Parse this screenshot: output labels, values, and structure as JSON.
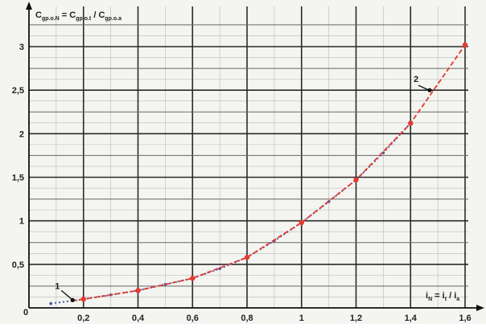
{
  "chart_data": {
    "type": "line",
    "ylabel": {
      "C1": "C",
      "sub1": "gp.o.N",
      "eq": " = C",
      "sub2": "gp.o.t",
      "slash": " / C",
      "sub3": "gp.o.a"
    },
    "xlabel": {
      "i": "i",
      "sub1": "N",
      "eq": " = i",
      "sub2": "t",
      "slash": " / i",
      "sub3": "a"
    },
    "origin_label": "0",
    "x_ticks": [
      "0,2",
      "0,4",
      "0,6",
      "0,8",
      "1",
      "1,2",
      "1,4",
      "1,6"
    ],
    "y_ticks": [
      "0,5",
      "1",
      "1,5",
      "2",
      "2,5",
      "3"
    ],
    "xlim": [
      0,
      1.6
    ],
    "ylim": [
      0,
      3.3
    ],
    "grid": true,
    "series": [
      {
        "color": "#e53a2e",
        "style": "dashed",
        "x": [
          0.2,
          0.4,
          0.6,
          0.8,
          1.0,
          1.2,
          1.4,
          1.6
        ],
        "y": [
          0.1,
          0.2,
          0.34,
          0.58,
          0.98,
          1.47,
          2.12,
          3.02
        ]
      },
      {
        "color": "#4a5aa8",
        "style": "dotted",
        "x": [
          0.08,
          0.2,
          0.3,
          0.4,
          0.5,
          0.6,
          0.7,
          0.8,
          0.9,
          1.0,
          1.1,
          1.2,
          1.3,
          1.4
        ],
        "y": [
          0.05,
          0.1,
          0.15,
          0.2,
          0.27,
          0.34,
          0.45,
          0.58,
          0.77,
          0.98,
          1.22,
          1.47,
          1.78,
          2.12
        ]
      }
    ],
    "annotations": [
      {
        "label": "1",
        "x": 0.16,
        "y": 0.09
      },
      {
        "label": "2",
        "x": 1.47,
        "y": 2.5
      }
    ]
  }
}
